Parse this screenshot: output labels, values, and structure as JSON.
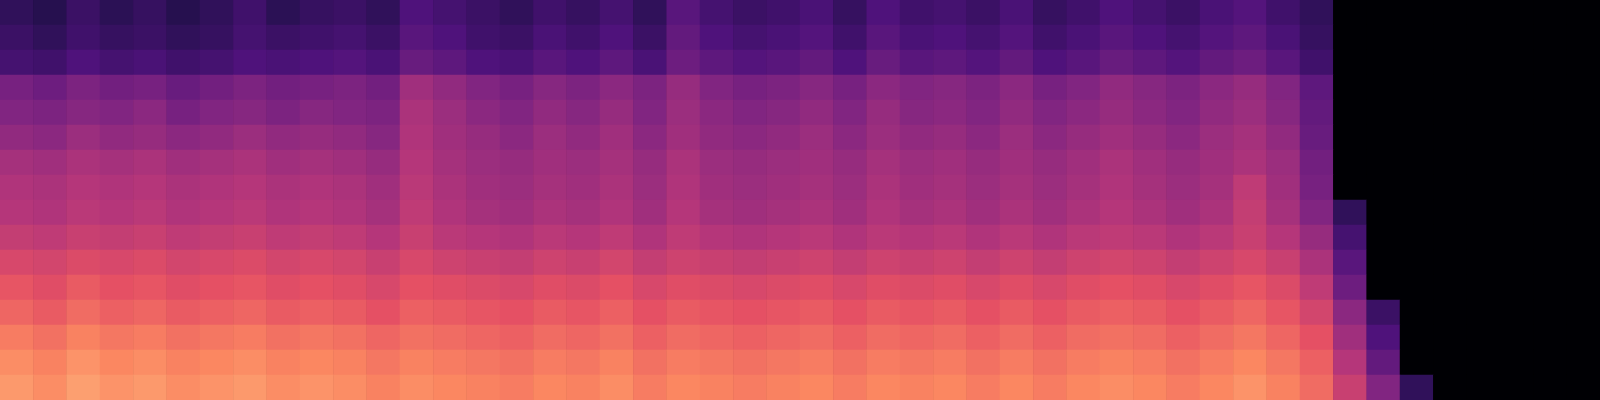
{
  "chart_data": {
    "type": "heatmap",
    "tick_labels": false,
    "zlim": [
      -80,
      0
    ],
    "cells": [
      [
        -66,
        -68,
        -64,
        -67,
        -65,
        -68,
        -66,
        -63,
        -67,
        -65,
        -64,
        -66,
        -60,
        -62,
        -64,
        -66,
        -63,
        -65,
        -62,
        -66,
        -58,
        -62,
        -64,
        -63,
        -61,
        -65,
        -60,
        -63,
        -62,
        -64,
        -61,
        -65,
        -63,
        -60,
        -62,
        -64,
        -61,
        -59,
        -63,
        -66,
        -80,
        -80,
        -80,
        -80,
        -80,
        -80,
        -80,
        -80
      ],
      [
        -64,
        -66,
        -63,
        -65,
        -64,
        -66,
        -65,
        -62,
        -64,
        -63,
        -62,
        -64,
        -58,
        -60,
        -63,
        -64,
        -61,
        -63,
        -60,
        -64,
        -56,
        -60,
        -62,
        -61,
        -59,
        -63,
        -58,
        -61,
        -60,
        -62,
        -59,
        -63,
        -61,
        -58,
        -60,
        -62,
        -59,
        -57,
        -61,
        -65,
        -80,
        -80,
        -80,
        -80,
        -80,
        -80,
        -80,
        -80
      ],
      [
        -62,
        -63,
        -60,
        -62,
        -61,
        -63,
        -62,
        -60,
        -61,
        -60,
        -59,
        -61,
        -55,
        -57,
        -60,
        -61,
        -58,
        -60,
        -57,
        -61,
        -54,
        -57,
        -59,
        -58,
        -56,
        -60,
        -55,
        -58,
        -57,
        -59,
        -56,
        -60,
        -58,
        -55,
        -57,
        -59,
        -56,
        -54,
        -58,
        -63,
        -80,
        -80,
        -80,
        -80,
        -80,
        -80,
        -80,
        -80
      ],
      [
        -52,
        -54,
        -51,
        -53,
        -52,
        -55,
        -53,
        -51,
        -53,
        -52,
        -51,
        -53,
        -44,
        -47,
        -50,
        -52,
        -49,
        -51,
        -48,
        -51,
        -46,
        -50,
        -52,
        -51,
        -49,
        -52,
        -48,
        -50,
        -49,
        -51,
        -48,
        -52,
        -50,
        -47,
        -49,
        -51,
        -48,
        -46,
        -50,
        -57,
        -80,
        -80,
        -80,
        -80,
        -80,
        -80,
        -80,
        -80
      ],
      [
        -50,
        -51,
        -49,
        -50,
        -48,
        -52,
        -50,
        -49,
        -51,
        -49,
        -50,
        -51,
        -42,
        -45,
        -48,
        -50,
        -47,
        -49,
        -46,
        -50,
        -45,
        -48,
        -50,
        -49,
        -47,
        -50,
        -46,
        -49,
        -48,
        -50,
        -47,
        -50,
        -48,
        -46,
        -48,
        -50,
        -47,
        -45,
        -49,
        -56,
        -80,
        -80,
        -80,
        -80,
        -80,
        -80,
        -80,
        -80
      ],
      [
        -47,
        -48,
        -45,
        -47,
        -46,
        -48,
        -47,
        -45,
        -47,
        -46,
        -47,
        -49,
        -41,
        -44,
        -46,
        -48,
        -45,
        -47,
        -44,
        -48,
        -44,
        -47,
        -48,
        -47,
        -45,
        -48,
        -45,
        -47,
        -46,
        -48,
        -45,
        -48,
        -46,
        -44,
        -46,
        -48,
        -45,
        -43,
        -47,
        -55,
        -80,
        -80,
        -80,
        -80,
        -80,
        -80,
        -80,
        -80
      ],
      [
        -43,
        -44,
        -42,
        -43,
        -42,
        -44,
        -43,
        -42,
        -44,
        -43,
        -44,
        -46,
        -40,
        -43,
        -45,
        -46,
        -44,
        -45,
        -43,
        -46,
        -42,
        -45,
        -46,
        -45,
        -44,
        -46,
        -43,
        -45,
        -44,
        -46,
        -44,
        -46,
        -44,
        -42,
        -44,
        -46,
        -44,
        -42,
        -45,
        -53,
        -80,
        -80,
        -80,
        -80,
        -80,
        -80,
        -80,
        -80
      ],
      [
        -41,
        -42,
        -40,
        -41,
        -40,
        -42,
        -41,
        -40,
        -42,
        -41,
        -42,
        -44,
        -39,
        -42,
        -44,
        -45,
        -43,
        -44,
        -42,
        -45,
        -41,
        -44,
        -45,
        -44,
        -43,
        -45,
        -42,
        -44,
        -43,
        -45,
        -43,
        -45,
        -43,
        -41,
        -43,
        -45,
        -43,
        -38,
        -44,
        -52,
        -80,
        -80,
        -80,
        -80,
        -80,
        -80,
        -80,
        -80
      ],
      [
        -40,
        -41,
        -39,
        -40,
        -39,
        -41,
        -40,
        -39,
        -41,
        -40,
        -41,
        -43,
        -38,
        -41,
        -43,
        -44,
        -42,
        -43,
        -41,
        -44,
        -40,
        -43,
        -44,
        -43,
        -42,
        -44,
        -41,
        -43,
        -42,
        -44,
        -42,
        -44,
        -42,
        -40,
        -42,
        -44,
        -42,
        -37,
        -43,
        -50,
        -66,
        -80,
        -80,
        -80,
        -80,
        -80,
        -80,
        -80
      ],
      [
        -37,
        -38,
        -36,
        -37,
        -36,
        -38,
        -37,
        -36,
        -38,
        -37,
        -38,
        -40,
        -36,
        -39,
        -40,
        -41,
        -39,
        -40,
        -38,
        -41,
        -38,
        -40,
        -41,
        -40,
        -39,
        -41,
        -39,
        -40,
        -39,
        -41,
        -39,
        -41,
        -39,
        -38,
        -39,
        -41,
        -39,
        -36,
        -40,
        -46,
        -62,
        -80,
        -80,
        -80,
        -80,
        -80,
        -80,
        -80
      ],
      [
        -33,
        -34,
        -32,
        -33,
        -32,
        -34,
        -33,
        -32,
        -34,
        -33,
        -34,
        -36,
        -33,
        -35,
        -36,
        -37,
        -35,
        -36,
        -34,
        -37,
        -35,
        -36,
        -37,
        -36,
        -35,
        -37,
        -35,
        -36,
        -35,
        -37,
        -35,
        -37,
        -35,
        -34,
        -35,
        -37,
        -35,
        -33,
        -36,
        -42,
        -58,
        -80,
        -80,
        -80,
        -80,
        -80,
        -80,
        -80
      ],
      [
        -29,
        -31,
        -28,
        -30,
        -29,
        -31,
        -30,
        -29,
        -31,
        -30,
        -31,
        -33,
        -30,
        -31,
        -32,
        -33,
        -31,
        -32,
        -30,
        -33,
        -31,
        -32,
        -33,
        -32,
        -31,
        -33,
        -31,
        -32,
        -31,
        -33,
        -31,
        -33,
        -31,
        -30,
        -31,
        -33,
        -31,
        -29,
        -32,
        -38,
        -54,
        -80,
        -80,
        -80,
        -80,
        -80,
        -80,
        -80
      ],
      [
        -26,
        -28,
        -25,
        -27,
        -26,
        -28,
        -27,
        -26,
        -28,
        -27,
        -28,
        -30,
        -27,
        -28,
        -29,
        -30,
        -28,
        -29,
        -27,
        -30,
        -28,
        -29,
        -30,
        -29,
        -28,
        -30,
        -28,
        -29,
        -28,
        -30,
        -28,
        -30,
        -28,
        -27,
        -28,
        -30,
        -28,
        -26,
        -29,
        -34,
        -48,
        -64,
        -80,
        -80,
        -80,
        -80,
        -80,
        -80
      ],
      [
        -22,
        -24,
        -21,
        -23,
        -22,
        -24,
        -23,
        -22,
        -24,
        -23,
        -24,
        -26,
        -24,
        -25,
        -26,
        -27,
        -25,
        -26,
        -24,
        -27,
        -25,
        -26,
        -27,
        -26,
        -25,
        -27,
        -25,
        -26,
        -25,
        -27,
        -25,
        -27,
        -25,
        -24,
        -25,
        -27,
        -25,
        -23,
        -26,
        -30,
        -44,
        -60,
        -80,
        -80,
        -80,
        -80,
        -80,
        -80
      ],
      [
        -19,
        -21,
        -18,
        -20,
        -19,
        -21,
        -20,
        -19,
        -21,
        -20,
        -21,
        -23,
        -21,
        -22,
        -23,
        -24,
        -22,
        -23,
        -21,
        -24,
        -22,
        -23,
        -24,
        -23,
        -22,
        -24,
        -22,
        -23,
        -22,
        -24,
        -22,
        -24,
        -22,
        -21,
        -22,
        -24,
        -22,
        -20,
        -23,
        -27,
        -40,
        -56,
        -80,
        -80,
        -80,
        -80,
        -80,
        -80
      ],
      [
        -17,
        -19,
        -16,
        -18,
        -17,
        -19,
        -18,
        -17,
        -19,
        -18,
        -19,
        -21,
        -19,
        -20,
        -21,
        -22,
        -20,
        -21,
        -19,
        -22,
        -20,
        -21,
        -22,
        -21,
        -20,
        -22,
        -20,
        -21,
        -20,
        -22,
        -20,
        -22,
        -20,
        -19,
        -20,
        -22,
        -20,
        -18,
        -21,
        -25,
        -36,
        -50,
        -66,
        -80,
        -80,
        -80,
        -80,
        -80
      ]
    ]
  }
}
